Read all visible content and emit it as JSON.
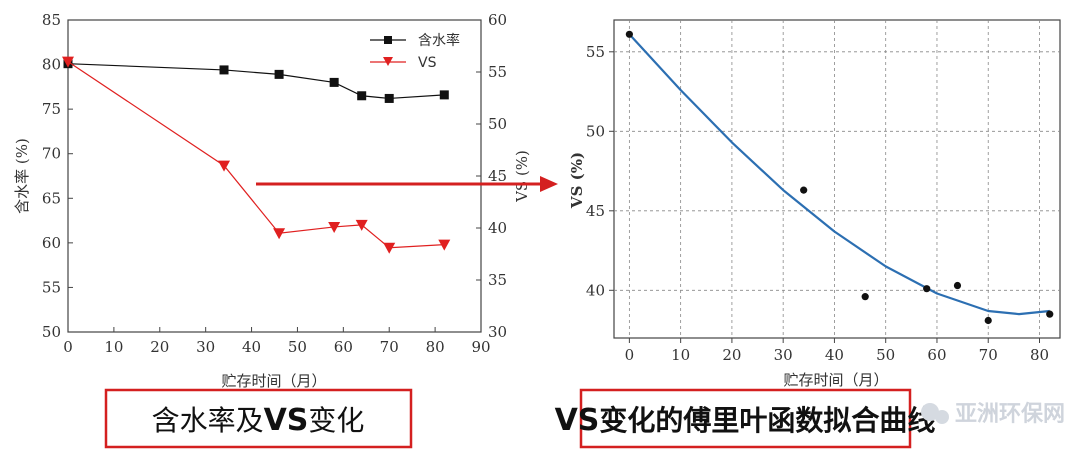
{
  "chart_data": [
    {
      "type": "line",
      "xlabel": "贮存时间（月）",
      "ylabel": "含水率 (%)",
      "y2label": "VS (%)",
      "xlim": [
        0,
        90
      ],
      "ylim": [
        50,
        85
      ],
      "y2lim": [
        30,
        60
      ],
      "xticks": [
        "0",
        "10",
        "20",
        "30",
        "40",
        "50",
        "60",
        "70",
        "80",
        "90"
      ],
      "yticks": [
        "50",
        "55",
        "60",
        "65",
        "70",
        "75",
        "80",
        "85"
      ],
      "y2ticks": [
        "30",
        "35",
        "40",
        "45",
        "50",
        "55",
        "60"
      ],
      "legend_position": "top-right",
      "series": [
        {
          "name": "含水率",
          "axis": "left",
          "marker": "square",
          "color": "#111111",
          "x": [
            0,
            34,
            46,
            58,
            64,
            70,
            82
          ],
          "values": [
            80.1,
            79.4,
            78.9,
            78.0,
            76.5,
            76.2,
            76.6
          ]
        },
        {
          "name": "VS",
          "axis": "right",
          "marker": "triangle-down",
          "color": "#e02020",
          "x": [
            0,
            34,
            46,
            58,
            64,
            70,
            82
          ],
          "values": [
            56.0,
            46.0,
            39.5,
            40.1,
            40.3,
            38.1,
            38.4
          ]
        }
      ]
    },
    {
      "type": "scatter",
      "xlabel": "贮存时间（月）",
      "ylabel": "VS (%)",
      "xlim": [
        -3,
        84
      ],
      "ylim": [
        37,
        57
      ],
      "xticks": [
        "0",
        "10",
        "20",
        "30",
        "40",
        "50",
        "60",
        "70",
        "80"
      ],
      "yticks": [
        "40",
        "45",
        "50",
        "55"
      ],
      "grid": true,
      "series": [
        {
          "marker": "dot",
          "color": "#111111",
          "x": [
            0,
            34,
            46,
            58,
            64,
            70,
            82
          ],
          "values": [
            56.1,
            46.3,
            39.6,
            40.1,
            40.3,
            38.1,
            38.5
          ]
        },
        {
          "type": "fit-line",
          "color": "#2c6fb2",
          "x": [
            0,
            10,
            20,
            30,
            40,
            50,
            60,
            70,
            76,
            82
          ],
          "values": [
            56.1,
            52.6,
            49.3,
            46.3,
            43.7,
            41.5,
            39.8,
            38.7,
            38.5,
            38.7
          ]
        }
      ]
    }
  ],
  "labels": {
    "left_title_part1": "含水率及",
    "left_title_bold": "VS",
    "left_title_part2": "变化",
    "right_title_bold": "VS",
    "right_title_part2": "变化的傅里叶函数拟合曲线"
  },
  "watermark": "亚洲环保网",
  "colors": {
    "arrow": "#d42020",
    "box_border": "#d42020",
    "fit": "#2c6fb2",
    "vs": "#e02020"
  }
}
